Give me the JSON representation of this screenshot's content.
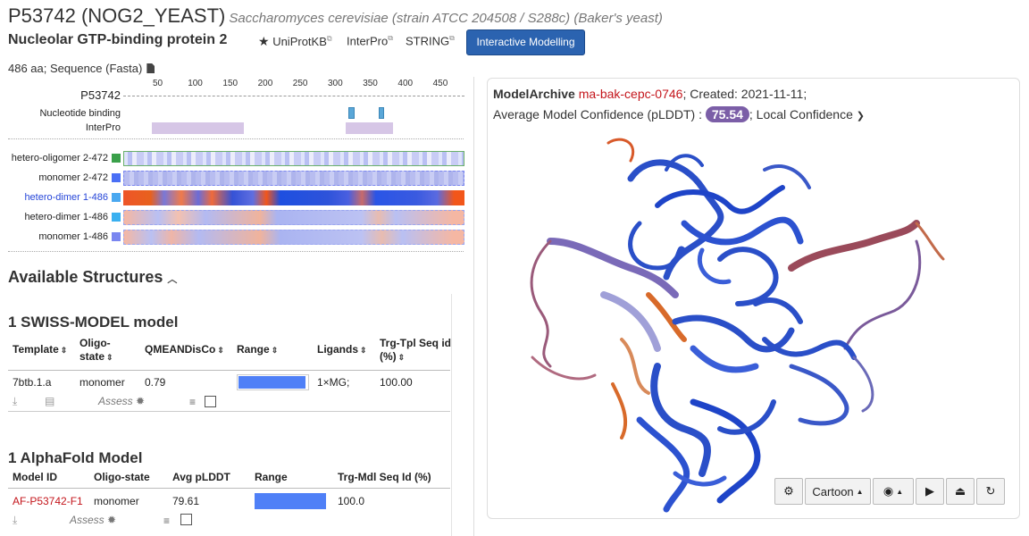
{
  "header": {
    "accession": "P53742 (NOG2_YEAST)",
    "species": "Saccharomyces cerevisiae (strain ATCC 204508 / S288c) (Baker's yeast)",
    "protein_name": "Nucleolar GTP-binding protein 2",
    "links": [
      "UniProtKB",
      "InterPro",
      "STRING"
    ],
    "interactive_button": "Interactive Modelling",
    "sequence_info": "486 aa; Sequence (Fasta)"
  },
  "tracks": {
    "ruler_label": "P53742",
    "ticks": [
      "50",
      "100",
      "150",
      "200",
      "250",
      "300",
      "350",
      "400",
      "450"
    ],
    "feature_labels": [
      "Nucleotide binding",
      "InterPro"
    ],
    "models": [
      {
        "label": "hetero-oligomer 2-472",
        "color": "#3aa04a",
        "link": false
      },
      {
        "label": "monomer 2-472",
        "color": "#4a6ff5",
        "link": false
      },
      {
        "label": "hetero-dimer 1-486",
        "color": "#4aa8f0",
        "link": true
      },
      {
        "label": "hetero-dimer 1-486",
        "color": "#3ab0f0",
        "link": false
      },
      {
        "label": "monomer 1-486",
        "color": "#7a86f0",
        "link": false
      }
    ]
  },
  "structures": {
    "section_title": "Available Structures",
    "swiss": {
      "title": "1 SWISS-MODEL model",
      "headers": [
        "Template",
        "Oligo-state",
        "QMEANDisCo",
        "Range",
        "Ligands",
        "Trg-Tpl Seq id (%)"
      ],
      "row": {
        "template": "7btb.1.a",
        "oligo": "monomer",
        "qmean": "0.79",
        "range_fraction": 0.97,
        "ligands": "1×MG;",
        "seqid": "100.00"
      },
      "assess": "Assess"
    },
    "alphafold": {
      "title": "1 AlphaFold Model",
      "headers": [
        "Model ID",
        "Oligo-state",
        "Avg pLDDT",
        "Range",
        "Trg-Mdl Seq Id (%)"
      ],
      "row": {
        "model_id": "AF-P53742-F1",
        "oligo": "monomer",
        "plddt": "79.61",
        "range_fraction": 1.0,
        "seqid": "100.0"
      },
      "assess": "Assess"
    }
  },
  "viewer": {
    "source": "ModelArchive",
    "model_id": "ma-bak-cepc-0746",
    "created": "; Created: 2021-11-11;",
    "confidence_label": "Average Model Confidence (pLDDT) :",
    "confidence_value": "75.54",
    "local_confidence": "; Local Confidence",
    "style_button": "Cartoon"
  },
  "colors": {
    "accent": "#2b63b0",
    "link_red": "#c4161c",
    "badge": "#7b5ea7",
    "range_fill": "#4f80f7"
  }
}
